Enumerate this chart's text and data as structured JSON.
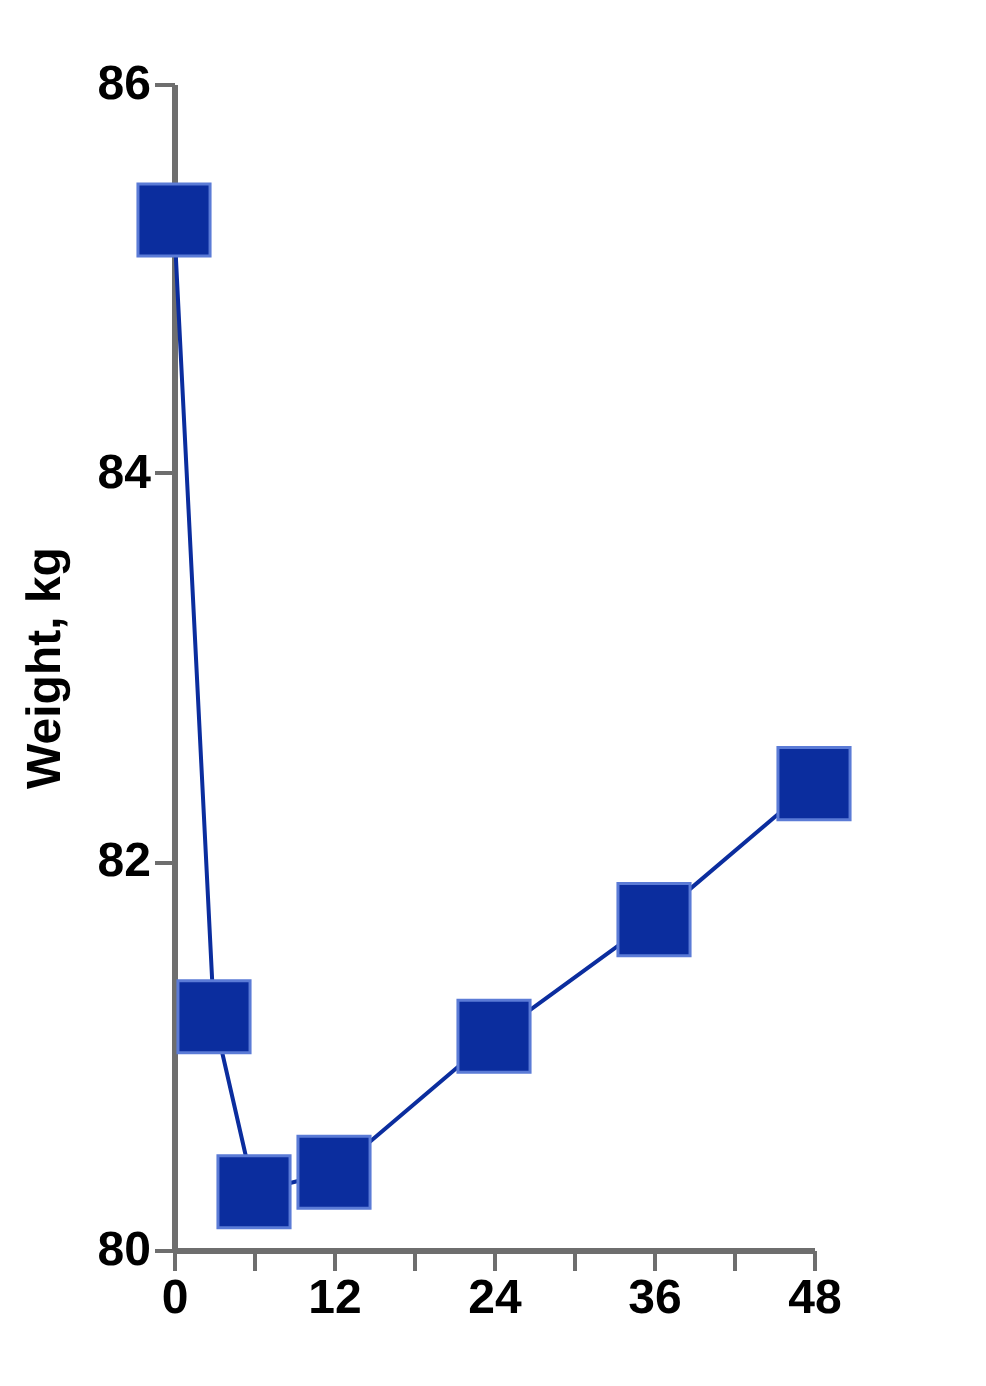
{
  "chart_data": {
    "type": "line",
    "ylabel": "Weight, kg",
    "x": [
      0,
      3,
      6,
      12,
      24,
      36,
      48
    ],
    "series": [
      {
        "color": "#0b2d9e",
        "values": [
          85.3,
          81.2,
          80.3,
          80.4,
          81.1,
          81.7,
          82.4
        ]
      }
    ],
    "xlim": [
      0,
      48
    ],
    "xticks": [
      0,
      {
        "value": 6,
        "label": null
      },
      12,
      {
        "value": 18,
        "label": null
      },
      24,
      {
        "value": 30,
        "label": null
      },
      36,
      {
        "value": 42,
        "label": null
      },
      48
    ],
    "ylim": [
      80,
      86
    ],
    "yticks": [
      80,
      82,
      84,
      86
    ],
    "grid": false,
    "marker": "square",
    "line_style": "solid"
  }
}
